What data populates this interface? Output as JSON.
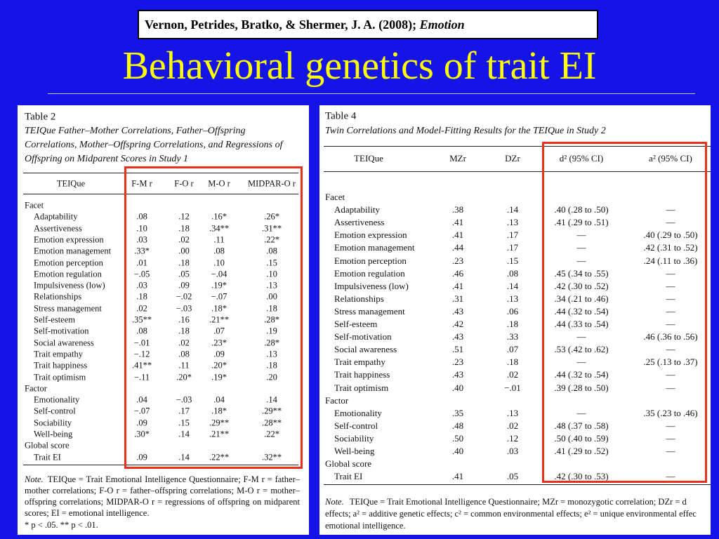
{
  "citation": {
    "text": "Vernon, Petrides, Bratko, & Shermer, J. A. (2008);",
    "journal": "Emotion"
  },
  "title": "Behavioral genetics of trait EI",
  "table2": {
    "label": "Table 2",
    "caption": "TEIQue Father–Mother Correlations, Father–Offspring Correlations, Mother–Offspring Correlations, and Regressions of Offspring on Midparent Scores in Study 1",
    "columns": [
      "TEIQue",
      "F-M r",
      "F-O r",
      "M-O r",
      "MIDPAR-O r"
    ],
    "rows": [
      [
        "Facet"
      ],
      [
        "Adaptability",
        ".08",
        ".12",
        ".16*",
        ".26*"
      ],
      [
        "Assertiveness",
        ".10",
        ".18",
        ".34**",
        ".31**"
      ],
      [
        "Emotion expression",
        ".03",
        ".02",
        ".11",
        ".22*"
      ],
      [
        "Emotion management",
        ".33*",
        ".00",
        ".08",
        ".08"
      ],
      [
        "Emotion perception",
        ".01",
        ".18",
        ".10",
        ".15"
      ],
      [
        "Emotion regulation",
        "−.05",
        ".05",
        "−.04",
        ".10"
      ],
      [
        "Impulsiveness (low)",
        ".03",
        ".09",
        ".19*",
        ".13"
      ],
      [
        "Relationships",
        ".18",
        "−.02",
        "−.07",
        ".00"
      ],
      [
        "Stress management",
        ".02",
        "−.03",
        ".18*",
        ".18"
      ],
      [
        "Self-esteem",
        ".35**",
        ".16",
        ".21**",
        ".28*"
      ],
      [
        "Self-motivation",
        ".08",
        ".18",
        ".07",
        ".19"
      ],
      [
        "Social awareness",
        "−.01",
        ".02",
        ".23*",
        ".28*"
      ],
      [
        "Trait empathy",
        "−.12",
        ".08",
        ".09",
        ".13"
      ],
      [
        "Trait happiness",
        ".41**",
        ".11",
        ".20*",
        ".18"
      ],
      [
        "Trait optimism",
        "−.11",
        ".20*",
        ".19*",
        ".20"
      ],
      [
        "Factor"
      ],
      [
        "Emotionality",
        ".04",
        "−.03",
        ".04",
        ".14"
      ],
      [
        "Self-control",
        "−.07",
        ".17",
        ".18*",
        ".29**"
      ],
      [
        "Sociability",
        ".09",
        ".15",
        ".29**",
        ".28**"
      ],
      [
        "Well-being",
        ".30*",
        ".14",
        ".21**",
        ".22*"
      ],
      [
        "Global score"
      ],
      [
        "Trait EI",
        ".09",
        ".14",
        ".22**",
        ".32**"
      ]
    ],
    "note_label": "Note.",
    "note": "TEIQue = Trait Emotional Intelligence Questionnaire; F-M r = father–mother correlations; F-O r = father–offspring correlations; M-O r = mother–offspring correlations; MIDPAR-O r = regressions of offspring on midparent scores; EI = emotional intelligence.",
    "significance": "* p < .05.   ** p < .01."
  },
  "table4": {
    "label": "Table 4",
    "caption": "Twin Correlations and Model-Fitting Results for the TEIQue in Study 2",
    "columns": [
      "TEIQue",
      "MZr",
      "DZr",
      "d² (95% CI)",
      "a² (95% CI)"
    ],
    "rows": [
      [
        "Facet"
      ],
      [
        "Adaptability",
        ".38",
        ".14",
        ".40 (.28 to .50)",
        "—"
      ],
      [
        "Assertiveness",
        ".41",
        ".13",
        ".41 (.29 to .51)",
        "—"
      ],
      [
        "Emotion expression",
        ".41",
        ".17",
        "—",
        ".40 (.29 to .50)"
      ],
      [
        "Emotion management",
        ".44",
        ".17",
        "—",
        ".42 (.31 to .52)"
      ],
      [
        "Emotion perception",
        ".23",
        ".15",
        "—",
        ".24 (.11 to .36)"
      ],
      [
        "Emotion regulation",
        ".46",
        ".08",
        ".45 (.34 to .55)",
        "—"
      ],
      [
        "Impulsiveness (low)",
        ".41",
        ".14",
        ".42 (.30 to .52)",
        "—"
      ],
      [
        "Relationships",
        ".31",
        ".13",
        ".34 (.21 to .46)",
        "—"
      ],
      [
        "Stress management",
        ".43",
        ".06",
        ".44 (.32 to .54)",
        "—"
      ],
      [
        "Self-esteem",
        ".42",
        ".18",
        ".44 (.33 to .54)",
        "—"
      ],
      [
        "Self-motivation",
        ".43",
        ".33",
        "—",
        ".46 (.36 to .56)"
      ],
      [
        "Social awareness",
        ".51",
        ".07",
        ".53 (.42 to .62)",
        "—"
      ],
      [
        "Trait empathy",
        ".23",
        ".18",
        "—",
        ".25 (.13 to .37)"
      ],
      [
        "Trait happiness",
        ".43",
        ".02",
        ".44 (.32 to .54)",
        "—"
      ],
      [
        "Trait optimism",
        ".40",
        "−.01",
        ".39 (.28 to .50)",
        "—"
      ],
      [
        "Factor"
      ],
      [
        "Emotionality",
        ".35",
        ".13",
        "—",
        ".35 (.23 to .46)"
      ],
      [
        "Self-control",
        ".48",
        ".02",
        ".48 (.37 to .58)",
        "—"
      ],
      [
        "Sociability",
        ".50",
        ".12",
        ".50 (.40 to .59)",
        "—"
      ],
      [
        "Well-being",
        ".40",
        ".03",
        ".41 (.29 to .52)",
        "—"
      ],
      [
        "Global score"
      ],
      [
        "Trait EI",
        ".41",
        ".05",
        ".42 (.30 to .53)",
        "—"
      ]
    ],
    "note_label": "Note.",
    "note_lines": [
      "TEIQue = Trait Emotional Intelligence Questionnaire; MZr = monozygotic correlation; DZr = d",
      "effects; a² = additive genetic effects; c² = common environmental effects; e² = unique environmental effec",
      "emotional intelligence."
    ]
  }
}
